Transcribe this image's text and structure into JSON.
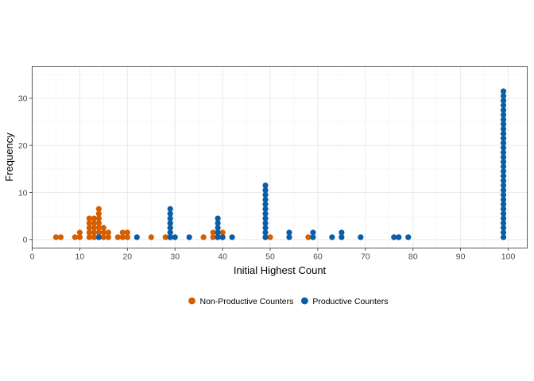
{
  "chart_data": {
    "type": "scatter",
    "subtype": "dotplot",
    "xlabel": "Initial Highest Count",
    "ylabel": "Frequency",
    "xlim": [
      0,
      104
    ],
    "ylim": [
      -1.8,
      36.8
    ],
    "xticks": [
      0,
      10,
      20,
      30,
      40,
      50,
      60,
      70,
      80,
      90,
      100
    ],
    "xtick_labels": [
      "0",
      "10",
      "20",
      "30",
      "40",
      "50",
      "60",
      "70",
      "80",
      "90",
      "100"
    ],
    "yticks": [
      0,
      10,
      20,
      30
    ],
    "ytick_labels": [
      "0",
      "10",
      "20",
      "30"
    ],
    "grid": true,
    "legend_position": "bottom",
    "series": [
      {
        "name": "Non-Productive Counters",
        "color": "#D55E00",
        "bins": [
          {
            "x": 5,
            "count": 1
          },
          {
            "x": 6,
            "count": 1
          },
          {
            "x": 9,
            "count": 1
          },
          {
            "x": 10,
            "count": 2
          },
          {
            "x": 12,
            "count": 5
          },
          {
            "x": 13,
            "count": 5
          },
          {
            "x": 14,
            "count": 7
          },
          {
            "x": 15,
            "count": 3
          },
          {
            "x": 16,
            "count": 2
          },
          {
            "x": 18,
            "count": 1
          },
          {
            "x": 19,
            "count": 2
          },
          {
            "x": 20,
            "count": 2
          },
          {
            "x": 25,
            "count": 1
          },
          {
            "x": 28,
            "count": 1
          },
          {
            "x": 29,
            "count": 4
          },
          {
            "x": 36,
            "count": 1
          },
          {
            "x": 38,
            "count": 2
          },
          {
            "x": 39,
            "count": 2
          },
          {
            "x": 40,
            "count": 2
          },
          {
            "x": 49,
            "count": 1
          },
          {
            "x": 50,
            "count": 1
          },
          {
            "x": 58,
            "count": 1
          },
          {
            "x": 77,
            "count": 1
          }
        ]
      },
      {
        "name": "Productive Counters",
        "color": "#0A5EA8",
        "bins": [
          {
            "x": 14,
            "count": 1
          },
          {
            "x": 22,
            "count": 1
          },
          {
            "x": 29,
            "count": 7
          },
          {
            "x": 30,
            "count": 1
          },
          {
            "x": 33,
            "count": 1
          },
          {
            "x": 39,
            "count": 5
          },
          {
            "x": 40,
            "count": 1
          },
          {
            "x": 42,
            "count": 1
          },
          {
            "x": 49,
            "count": 12
          },
          {
            "x": 54,
            "count": 2
          },
          {
            "x": 59,
            "count": 2
          },
          {
            "x": 63,
            "count": 1
          },
          {
            "x": 65,
            "count": 2
          },
          {
            "x": 69,
            "count": 1
          },
          {
            "x": 76,
            "count": 1
          },
          {
            "x": 77,
            "count": 1
          },
          {
            "x": 79,
            "count": 1
          },
          {
            "x": 99,
            "count": 32
          }
        ]
      }
    ]
  }
}
